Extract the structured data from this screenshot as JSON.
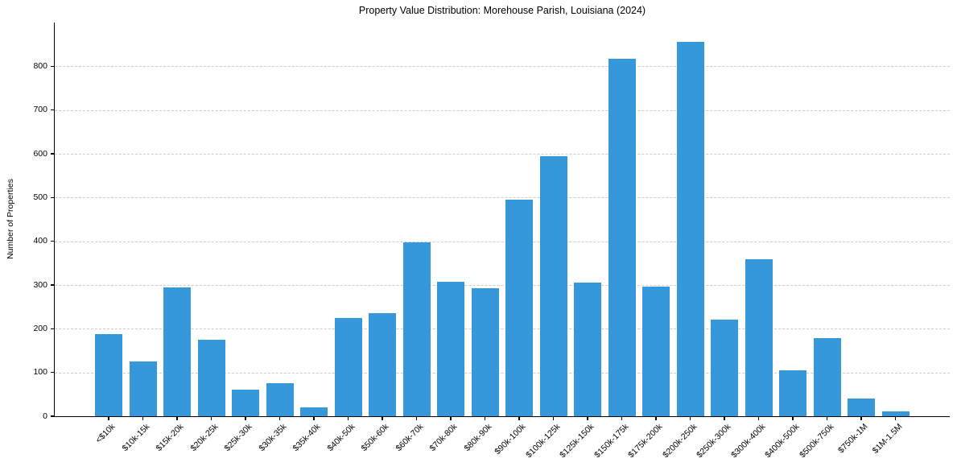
{
  "chart_data": {
    "type": "bar",
    "title": "Property Value Distribution: Morehouse Parish, Louisiana (2024)",
    "xlabel": "",
    "ylabel": "Number of Properties",
    "categories": [
      "<$10k",
      "$10k-15k",
      "$15k-20k",
      "$20k-25k",
      "$25k-30k",
      "$30k-35k",
      "$35k-40k",
      "$40k-50k",
      "$50k-60k",
      "$60k-70k",
      "$70k-80k",
      "$80k-90k",
      "$90k-100k",
      "$100k-125k",
      "$125k-150k",
      "$150k-175k",
      "$175k-200k",
      "$200k-250k",
      "$250k-300k",
      "$300k-400k",
      "$400k-500k",
      "$500k-750k",
      "$750k-1M",
      "$1M-1.5M"
    ],
    "values": [
      188,
      126,
      295,
      175,
      60,
      76,
      20,
      224,
      236,
      398,
      308,
      293,
      496,
      595,
      306,
      818,
      297,
      855,
      221,
      358,
      104,
      179,
      40,
      11
    ],
    "ylim": [
      0,
      900
    ],
    "yticks": [
      0,
      100,
      200,
      300,
      400,
      500,
      600,
      700,
      800
    ],
    "grid": "horizontal-dashed",
    "legend": "none",
    "bar_color": "#3498db",
    "grid_color": "#cccccc",
    "axis_color": "#000000",
    "text_color": "#000000",
    "background": "#ffffff"
  }
}
